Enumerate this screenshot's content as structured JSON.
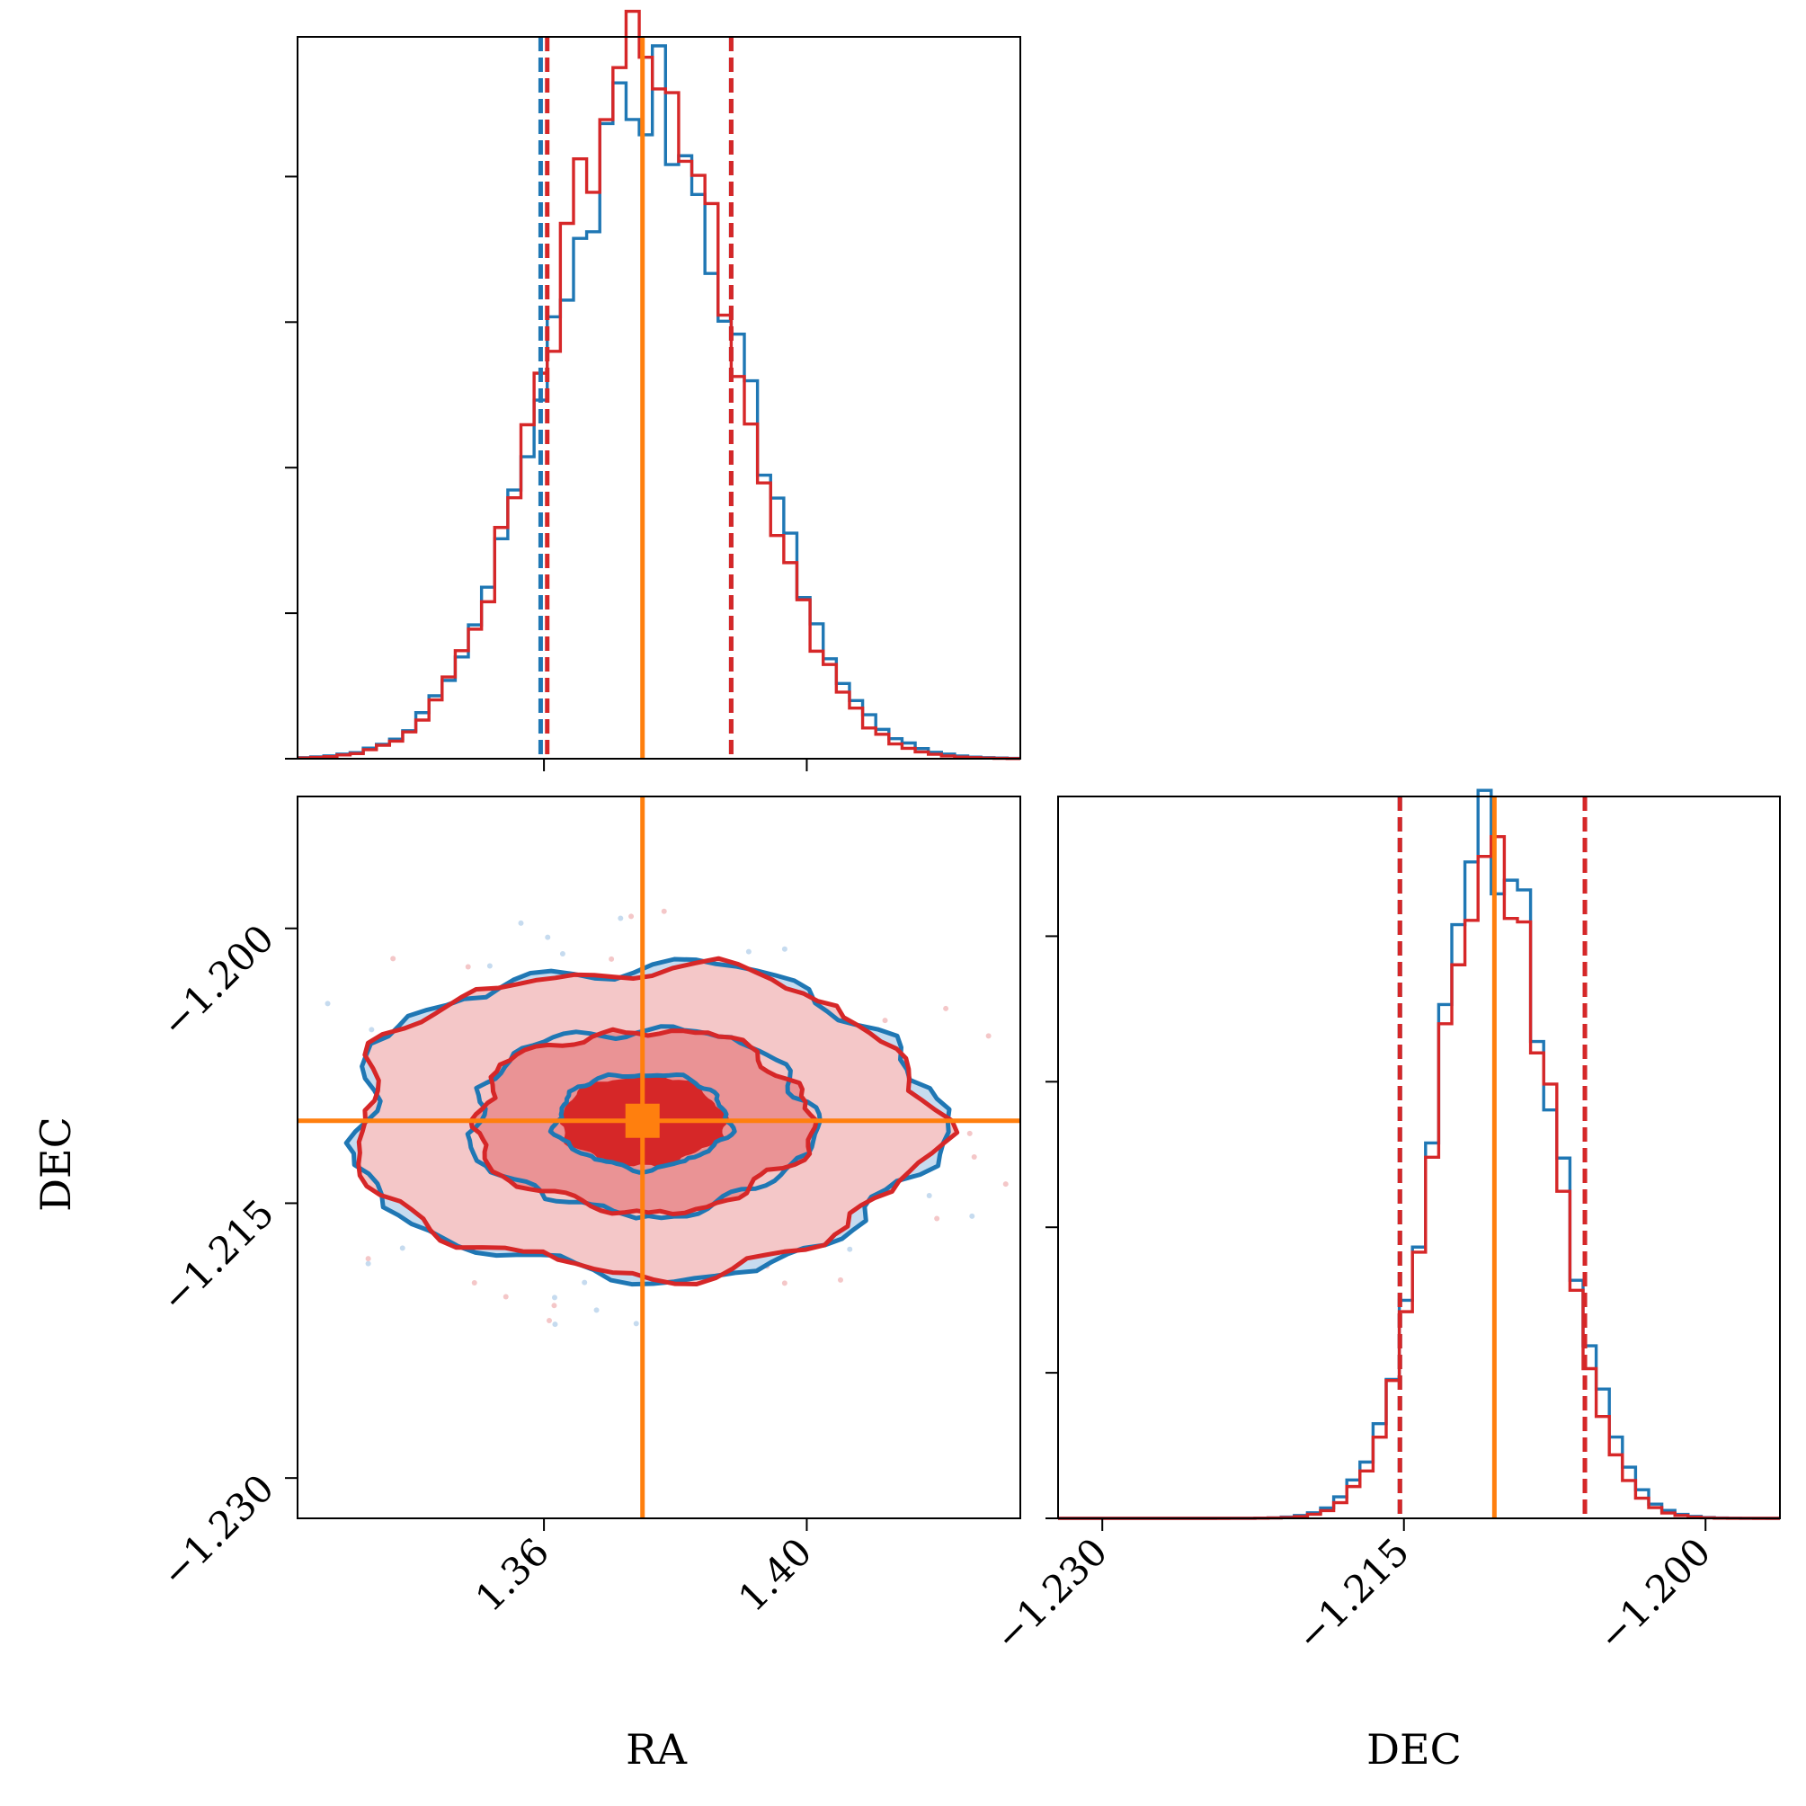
{
  "chart_data": {
    "type": "corner",
    "parameters": [
      "RA",
      "DEC"
    ],
    "colors": {
      "blue": "#1f77b4",
      "red": "#d62728",
      "truth": "#ff7f0e"
    },
    "series": [
      {
        "color": "#1f77b4"
      },
      {
        "color": "#d62728"
      }
    ],
    "truth": {
      "RA": 1.375,
      "DEC": -1.2105
    },
    "ra_hist": {
      "xlim": [
        1.3225,
        1.4325
      ],
      "xticks": [
        1.36,
        1.4
      ],
      "xtick_labels": [
        "1.36",
        "1.40"
      ],
      "y_ticks": 5,
      "blue_quantiles": [
        1.3595,
        1.3885
      ],
      "red_quantiles": [
        1.3605,
        1.3885
      ]
    },
    "dec_hist": {
      "xlim": [
        -1.2322,
        -1.1963
      ],
      "xticks": [
        -1.23,
        -1.215,
        -1.2
      ],
      "xtick_labels": [
        "−1.230",
        "−1.215",
        "−1.200"
      ],
      "y_ticks": 5,
      "blue_quantiles": [
        -1.2152,
        -1.206
      ],
      "red_quantiles": [
        -1.2152,
        -1.206
      ]
    },
    "scatter2d": {
      "xlim": [
        1.3225,
        1.4325
      ],
      "ylim": [
        -1.2322,
        -1.1928
      ],
      "yticks": [
        -1.2,
        -1.215,
        -1.23
      ],
      "ytick_labels": [
        "−1.200",
        "−1.215",
        "−1.230"
      ],
      "xticks": [
        1.36,
        1.4
      ],
      "xtick_labels": [
        "1.36",
        "1.40"
      ],
      "contour_radii": [
        [
          0.0125,
          0.00245
        ],
        [
          0.0255,
          0.00495
        ],
        [
          0.0445,
          0.0085
        ]
      ]
    },
    "xlabels": [
      "RA",
      "DEC"
    ],
    "ylabel": "DEC"
  }
}
